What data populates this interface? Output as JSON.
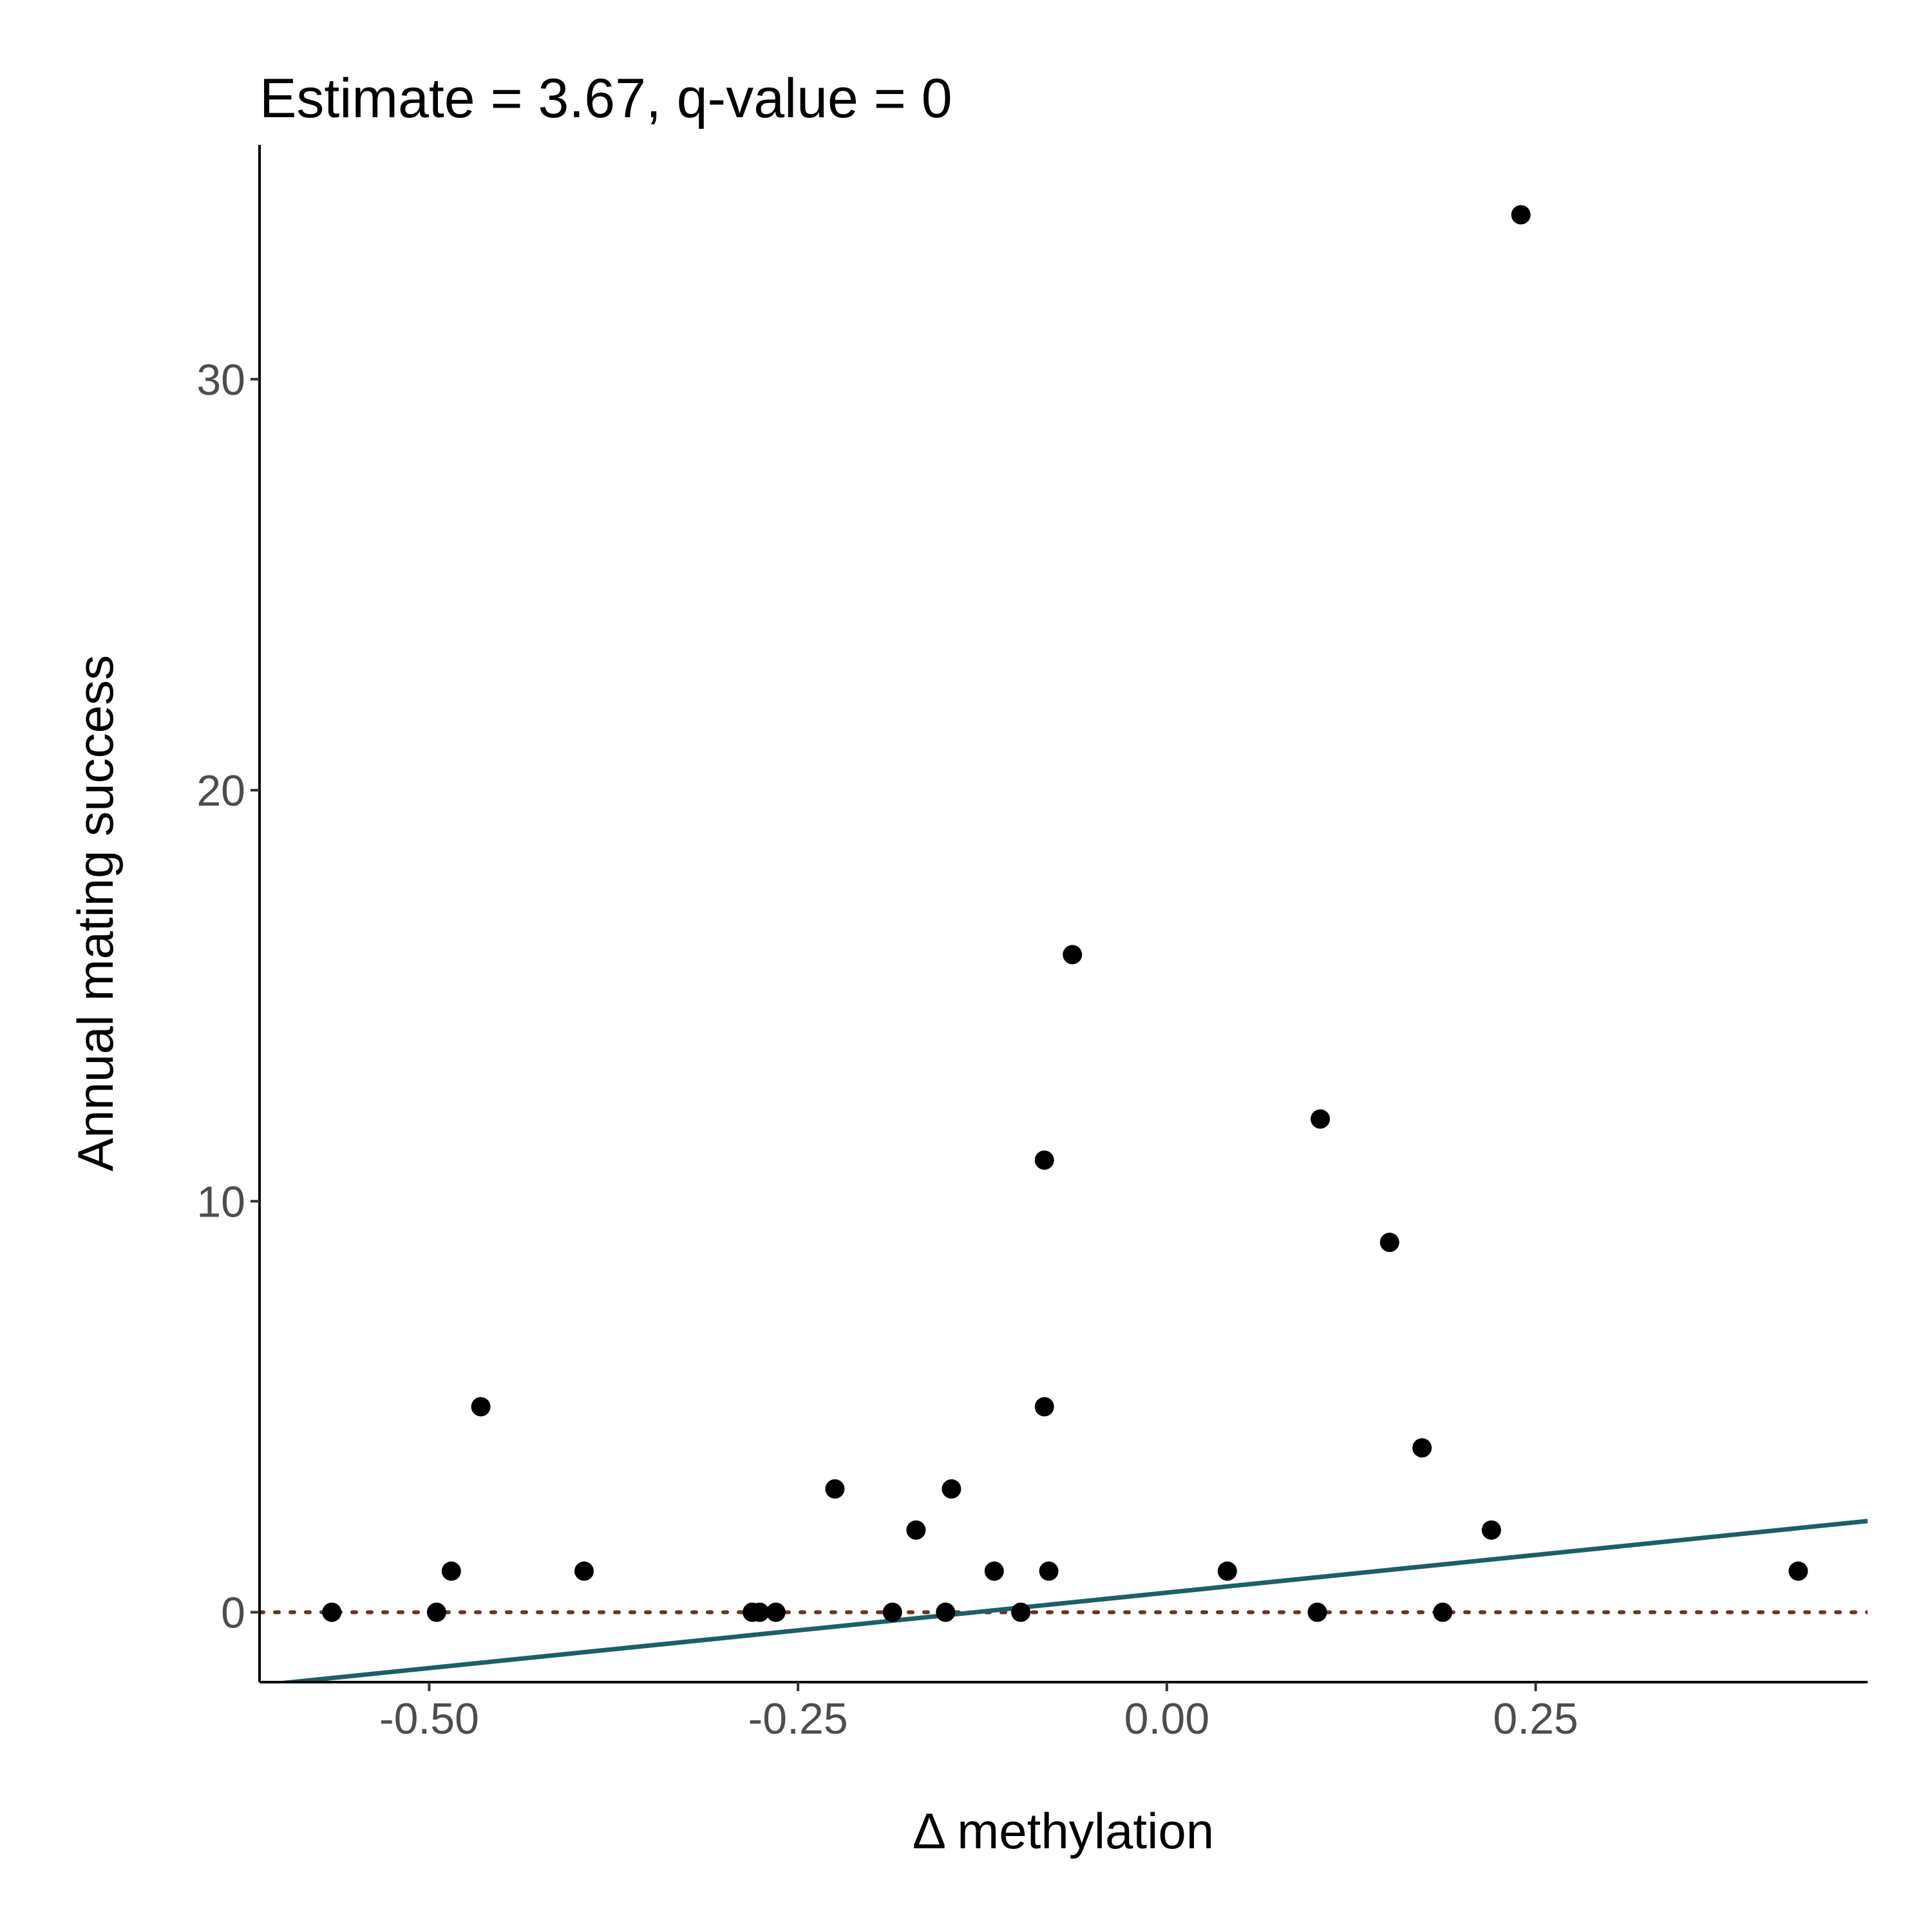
{
  "chart_data": {
    "type": "scatter",
    "title": "Estimate = 3.67, q-value = 0",
    "xlabel": "Δ methylation",
    "ylabel": "Annual mating success",
    "xlim": [
      -0.615,
      0.475
    ],
    "ylim": [
      -1.7,
      35.7
    ],
    "x_ticks": [
      -0.5,
      -0.25,
      0,
      0.25
    ],
    "x_tick_labels": [
      "-0.50",
      "-0.25",
      "0.00",
      "0.25"
    ],
    "y_ticks": [
      0,
      10,
      20,
      30
    ],
    "y_tick_labels": [
      "0",
      "10",
      "20",
      "30"
    ],
    "grid": false,
    "legend": "none",
    "points": [
      {
        "x": -0.566,
        "y": 0
      },
      {
        "x": -0.495,
        "y": 0
      },
      {
        "x": -0.485,
        "y": 1
      },
      {
        "x": -0.465,
        "y": 5
      },
      {
        "x": -0.395,
        "y": 1
      },
      {
        "x": -0.281,
        "y": 0
      },
      {
        "x": -0.276,
        "y": 0
      },
      {
        "x": -0.265,
        "y": 0
      },
      {
        "x": -0.225,
        "y": 3
      },
      {
        "x": -0.186,
        "y": 0
      },
      {
        "x": -0.17,
        "y": 2
      },
      {
        "x": -0.15,
        "y": 0
      },
      {
        "x": -0.146,
        "y": 3
      },
      {
        "x": -0.117,
        "y": 1
      },
      {
        "x": -0.099,
        "y": 0
      },
      {
        "x": -0.083,
        "y": 11
      },
      {
        "x": -0.083,
        "y": 5
      },
      {
        "x": -0.08,
        "y": 1
      },
      {
        "x": -0.064,
        "y": 16
      },
      {
        "x": 0.041,
        "y": 1
      },
      {
        "x": 0.102,
        "y": 0
      },
      {
        "x": 0.104,
        "y": 12
      },
      {
        "x": 0.151,
        "y": 9
      },
      {
        "x": 0.173,
        "y": 4
      },
      {
        "x": 0.187,
        "y": 0
      },
      {
        "x": 0.22,
        "y": 2
      },
      {
        "x": 0.24,
        "y": 34
      },
      {
        "x": 0.428,
        "y": 1
      }
    ],
    "fit_line": {
      "x": [
        -0.615,
        0.475
      ],
      "y": [
        -1.78,
        2.22
      ],
      "color": "#1b6068"
    },
    "reference_line": {
      "y": 0,
      "color": "#6b3322",
      "style": "dotted"
    },
    "point_color": "#000000"
  }
}
